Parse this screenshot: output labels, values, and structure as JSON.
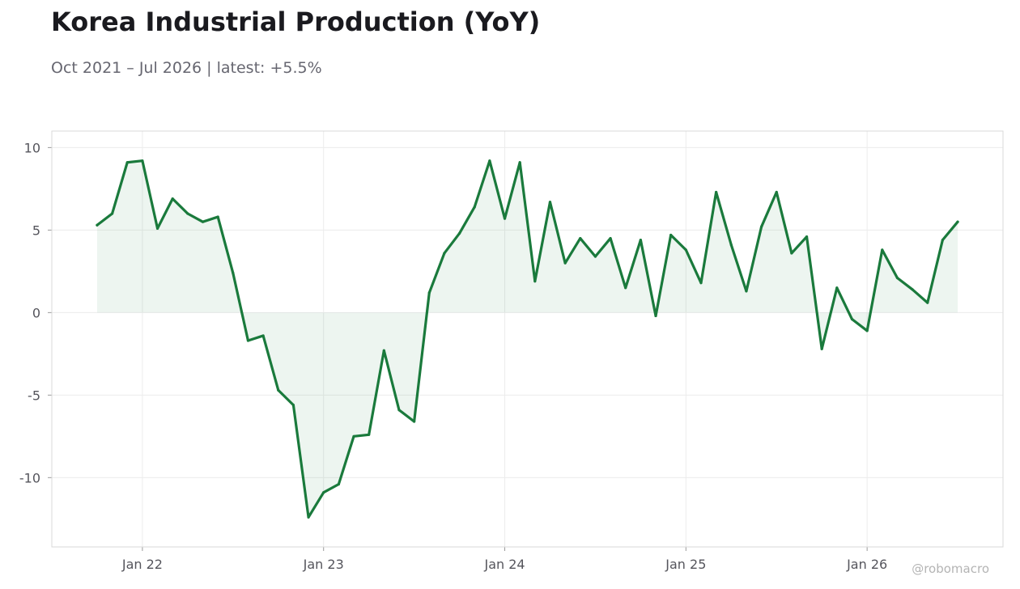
{
  "title": "Korea Industrial Production (YoY)",
  "subtitle": "Oct 2021 – Jul 2026 | latest: +5.5%",
  "watermark": "@robomacro",
  "colors": {
    "line": "#1a7a3c",
    "fill": "#1a7a3c",
    "grid": "#ececec",
    "frame": "#d9d9d9"
  },
  "chart_data": {
    "type": "area",
    "x_start": "2021-10",
    "x_end": "2026-07",
    "x_ticks": [
      {
        "date": "2022-01",
        "label": "Jan 22"
      },
      {
        "date": "2023-01",
        "label": "Jan 23"
      },
      {
        "date": "2024-01",
        "label": "Jan 24"
      },
      {
        "date": "2025-01",
        "label": "Jan 25"
      },
      {
        "date": "2026-01",
        "label": "Jan 26"
      }
    ],
    "y_ticks": [
      10,
      5,
      0,
      -5,
      -10
    ],
    "y_tick_labels": [
      "10",
      "5",
      "0",
      "-5",
      "-10"
    ],
    "ylim": [
      -14.2,
      11.0
    ],
    "xlim": [
      "2021-07",
      "2026-10"
    ],
    "grid": true,
    "series": [
      {
        "x": [
          "2021-10",
          "2021-11",
          "2021-12",
          "2022-01",
          "2022-02",
          "2022-03",
          "2022-04",
          "2022-05",
          "2022-06",
          "2022-07",
          "2022-08",
          "2022-09",
          "2022-10",
          "2022-11",
          "2022-12",
          "2023-01",
          "2023-02",
          "2023-03",
          "2023-04",
          "2023-05",
          "2023-06",
          "2023-07",
          "2023-08",
          "2023-09",
          "2023-10",
          "2023-11",
          "2023-12",
          "2024-01",
          "2024-02",
          "2024-03",
          "2024-04",
          "2024-05",
          "2024-06",
          "2024-07",
          "2024-08",
          "2024-09",
          "2024-10",
          "2024-11",
          "2024-12",
          "2025-01",
          "2025-02",
          "2025-03",
          "2025-04",
          "2025-05",
          "2025-06",
          "2025-07",
          "2025-08",
          "2025-09",
          "2025-10",
          "2025-11",
          "2025-12",
          "2026-01",
          "2026-02",
          "2026-03",
          "2026-04",
          "2026-05",
          "2026-06",
          "2026-07"
        ],
        "values": [
          5.3,
          6.0,
          9.1,
          9.2,
          5.1,
          6.9,
          6.0,
          5.5,
          5.8,
          2.4,
          -1.7,
          -1.4,
          -4.7,
          -5.6,
          -12.4,
          -10.9,
          -10.4,
          -7.5,
          -7.4,
          -2.3,
          -5.9,
          -6.6,
          1.2,
          3.6,
          4.8,
          6.4,
          9.2,
          5.7,
          9.1,
          1.9,
          6.7,
          3.0,
          4.5,
          3.4,
          4.5,
          1.5,
          4.4,
          -0.2,
          4.7,
          3.8,
          1.8,
          7.3,
          4.1,
          1.3,
          5.2,
          7.3,
          3.6,
          4.6,
          -2.2,
          1.5,
          -0.4,
          -1.1,
          3.8,
          2.1,
          1.4,
          0.6,
          4.4,
          5.5
        ]
      }
    ]
  }
}
